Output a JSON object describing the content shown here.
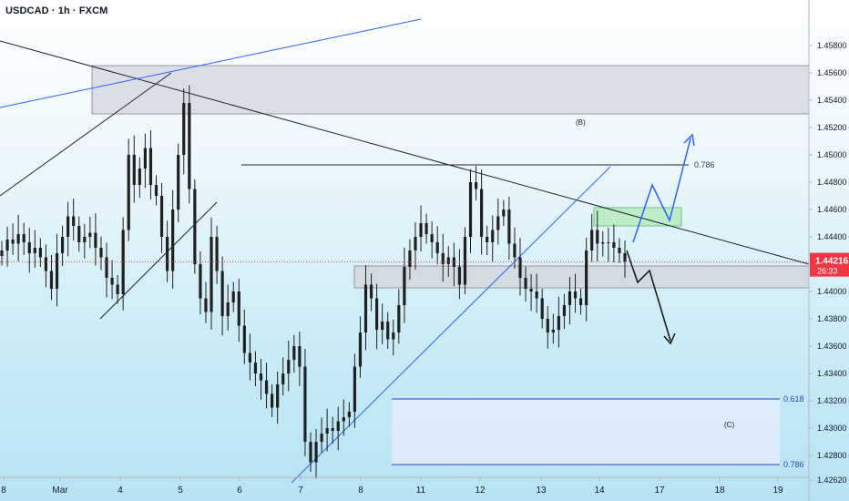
{
  "header": {
    "symbol_title": "USDCAD · 1h · FXCM"
  },
  "price_axis": {
    "ticks": [
      "1.45800",
      "1.45600",
      "1.45400",
      "1.45200",
      "1.45000",
      "1.44800",
      "1.44600",
      "1.44400",
      "1.44000",
      "1.43800",
      "1.43600",
      "1.43400",
      "1.43200",
      "1.43000",
      "1.42800",
      "1.42620"
    ],
    "tick_values": [
      1.458,
      1.456,
      1.454,
      1.452,
      1.45,
      1.448,
      1.446,
      1.444,
      1.44,
      1.438,
      1.436,
      1.434,
      1.432,
      1.43,
      1.428,
      1.4262
    ],
    "current_price": "1.44216",
    "current_value": 1.44216,
    "countdown": "26:33"
  },
  "time_axis": {
    "labels": [
      "8",
      "Mar",
      "4",
      "5",
      "6",
      "7",
      "8",
      "11",
      "12",
      "13",
      "14",
      "17",
      "18",
      "19"
    ]
  },
  "annotations": {
    "wave_b": "(B)",
    "wave_c": "(C)",
    "fib_786_upper": "0.786",
    "fib_618": "0.618",
    "fib_786_lower": "0.786"
  },
  "colors": {
    "bull": "#26a69a",
    "bear": "#ef5350",
    "candle": "#202020",
    "price_label": "#f23645",
    "blue_line": "#2962ff",
    "dark_line": "#1e222d",
    "green_zone": "#b7ecc0",
    "gray_zone": "#d1d4dc"
  },
  "chart_data": {
    "type": "candlestick",
    "title": "USDCAD · 1h · FXCM",
    "xlabel": "",
    "ylabel": "",
    "ylim": [
      1.4256,
      1.4595
    ],
    "x_ticks": [
      "8",
      "Mar",
      "4",
      "5",
      "6",
      "7",
      "8",
      "11",
      "12",
      "13",
      "14",
      "17",
      "18",
      "19"
    ],
    "series": [
      {
        "values": [
          1.443,
          1.4438,
          1.4435,
          1.4442,
          1.4436,
          1.4428,
          1.4432,
          1.4425,
          1.4415,
          1.4402,
          1.4428,
          1.444,
          1.4455,
          1.4448,
          1.4436,
          1.444,
          1.4443,
          1.4432,
          1.4425,
          1.441,
          1.4405,
          1.4398,
          1.4445,
          1.45,
          1.4478,
          1.449,
          1.4505,
          1.4478,
          1.447,
          1.444,
          1.4415,
          1.446,
          1.45,
          1.4538,
          1.4475,
          1.442,
          1.4395,
          1.4385,
          1.444,
          1.4415,
          1.4382,
          1.4392,
          1.44,
          1.4375,
          1.4355,
          1.4348,
          1.434,
          1.4335,
          1.4325,
          1.4315,
          1.4332,
          1.434,
          1.435,
          1.436,
          1.4345,
          1.429,
          1.4275,
          1.429,
          1.4296,
          1.43,
          1.4298,
          1.4305,
          1.4308,
          1.4312,
          1.4345,
          1.437,
          1.4405,
          1.4395,
          1.4372,
          1.4378,
          1.4365,
          1.437,
          1.439,
          1.4418,
          1.443,
          1.444,
          1.445,
          1.4442,
          1.4436,
          1.4428,
          1.442,
          1.4425,
          1.4418,
          1.4405,
          1.444,
          1.448,
          1.4475,
          1.444,
          1.4436,
          1.4445,
          1.4455,
          1.446,
          1.4435,
          1.4425,
          1.441,
          1.4402,
          1.44,
          1.4395,
          1.438,
          1.437,
          1.4372,
          1.4382,
          1.439,
          1.44,
          1.4395,
          1.439,
          1.443,
          1.4445,
          1.4435,
          1.4436,
          1.4436,
          1.4432,
          1.4428,
          1.4422
        ]
      }
    ],
    "current_price": 1.44216,
    "zones": [
      {
        "label": "",
        "top": 1.455,
        "bottom": 1.4515
      },
      {
        "label": "",
        "top": 1.4447,
        "bottom": 1.4433
      },
      {
        "label": "",
        "top": 1.4405,
        "bottom": 1.4388
      },
      {
        "label": "(C)",
        "top": 1.431,
        "bottom": 1.4263
      }
    ],
    "levels": [
      {
        "label": "0.786",
        "value": 1.448
      },
      {
        "label": "0.618",
        "value": 1.431
      },
      {
        "label": "0.786",
        "value": 1.4263
      }
    ],
    "grid": false,
    "legend": "none"
  }
}
